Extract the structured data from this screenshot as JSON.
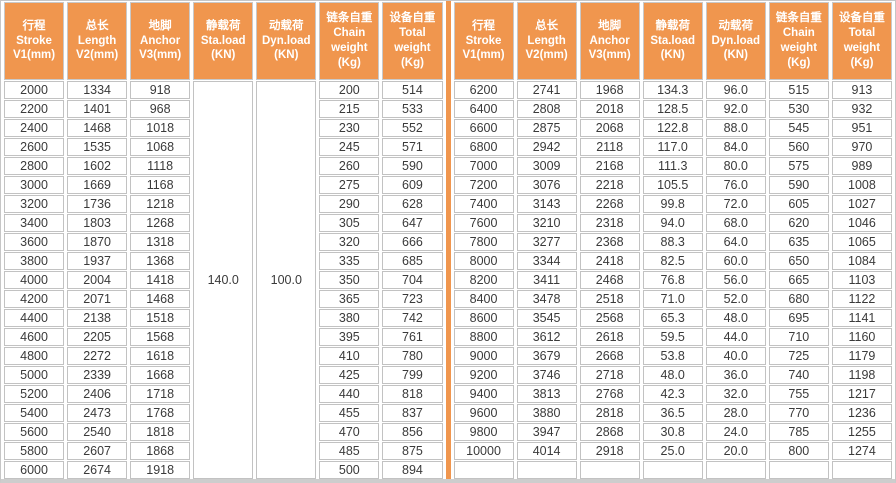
{
  "colors": {
    "header_bg": "#F0964E",
    "divider": "#F0964E",
    "cell_border": "#C2C2C2",
    "text": "#3A3A3A",
    "header_text": "#FFFFFF"
  },
  "table": {
    "column_keys": [
      "stroke",
      "length",
      "anchor",
      "sta",
      "dyn",
      "chain",
      "total"
    ],
    "header_columns": [
      {
        "key": "stroke",
        "lines": [
          "行程",
          "Stroke",
          "V1(mm)"
        ]
      },
      {
        "key": "length",
        "lines": [
          "总长",
          "Length",
          "V2(mm)"
        ]
      },
      {
        "key": "anchor",
        "lines": [
          "地脚",
          "Anchor",
          "V3(mm)"
        ]
      },
      {
        "key": "sta",
        "lines": [
          "静载荷",
          "Sta.load",
          "(KN)"
        ]
      },
      {
        "key": "dyn",
        "lines": [
          "动载荷",
          "Dyn.load",
          "(KN)"
        ]
      },
      {
        "key": "chain",
        "lines": [
          "链条自重",
          "Chain",
          "weight",
          "(Kg)"
        ]
      },
      {
        "key": "total",
        "lines": [
          "设备自重",
          "Total",
          "weight",
          "(Kg)"
        ]
      }
    ],
    "left_half": {
      "sta_load_merged": "140.0",
      "dyn_load_merged": "100.0",
      "rows": [
        [
          "2000",
          "1334",
          "918",
          "200",
          "514"
        ],
        [
          "2200",
          "1401",
          "968",
          "215",
          "533"
        ],
        [
          "2400",
          "1468",
          "1018",
          "230",
          "552"
        ],
        [
          "2600",
          "1535",
          "1068",
          "245",
          "571"
        ],
        [
          "2800",
          "1602",
          "1118",
          "260",
          "590"
        ],
        [
          "3000",
          "1669",
          "1168",
          "275",
          "609"
        ],
        [
          "3200",
          "1736",
          "1218",
          "290",
          "628"
        ],
        [
          "3400",
          "1803",
          "1268",
          "305",
          "647"
        ],
        [
          "3600",
          "1870",
          "1318",
          "320",
          "666"
        ],
        [
          "3800",
          "1937",
          "1368",
          "335",
          "685"
        ],
        [
          "4000",
          "2004",
          "1418",
          "350",
          "704"
        ],
        [
          "4200",
          "2071",
          "1468",
          "365",
          "723"
        ],
        [
          "4400",
          "2138",
          "1518",
          "380",
          "742"
        ],
        [
          "4600",
          "2205",
          "1568",
          "395",
          "761"
        ],
        [
          "4800",
          "2272",
          "1618",
          "410",
          "780"
        ],
        [
          "5000",
          "2339",
          "1668",
          "425",
          "799"
        ],
        [
          "5200",
          "2406",
          "1718",
          "440",
          "818"
        ],
        [
          "5400",
          "2473",
          "1768",
          "455",
          "837"
        ],
        [
          "5600",
          "2540",
          "1818",
          "470",
          "856"
        ],
        [
          "5800",
          "2607",
          "1868",
          "485",
          "875"
        ],
        [
          "6000",
          "2674",
          "1918",
          "500",
          "894"
        ]
      ]
    },
    "right_half": {
      "rows": [
        [
          "6200",
          "2741",
          "1968",
          "134.3",
          "96.0",
          "515",
          "913"
        ],
        [
          "6400",
          "2808",
          "2018",
          "128.5",
          "92.0",
          "530",
          "932"
        ],
        [
          "6600",
          "2875",
          "2068",
          "122.8",
          "88.0",
          "545",
          "951"
        ],
        [
          "6800",
          "2942",
          "2118",
          "117.0",
          "84.0",
          "560",
          "970"
        ],
        [
          "7000",
          "3009",
          "2168",
          "111.3",
          "80.0",
          "575",
          "989"
        ],
        [
          "7200",
          "3076",
          "2218",
          "105.5",
          "76.0",
          "590",
          "1008"
        ],
        [
          "7400",
          "3143",
          "2268",
          "99.8",
          "72.0",
          "605",
          "1027"
        ],
        [
          "7600",
          "3210",
          "2318",
          "94.0",
          "68.0",
          "620",
          "1046"
        ],
        [
          "7800",
          "3277",
          "2368",
          "88.3",
          "64.0",
          "635",
          "1065"
        ],
        [
          "8000",
          "3344",
          "2418",
          "82.5",
          "60.0",
          "650",
          "1084"
        ],
        [
          "8200",
          "3411",
          "2468",
          "76.8",
          "56.0",
          "665",
          "1103"
        ],
        [
          "8400",
          "3478",
          "2518",
          "71.0",
          "52.0",
          "680",
          "1122"
        ],
        [
          "8600",
          "3545",
          "2568",
          "65.3",
          "48.0",
          "695",
          "1141"
        ],
        [
          "8800",
          "3612",
          "2618",
          "59.5",
          "44.0",
          "710",
          "1160"
        ],
        [
          "9000",
          "3679",
          "2668",
          "53.8",
          "40.0",
          "725",
          "1179"
        ],
        [
          "9200",
          "3746",
          "2718",
          "48.0",
          "36.0",
          "740",
          "1198"
        ],
        [
          "9400",
          "3813",
          "2768",
          "42.3",
          "32.0",
          "755",
          "1217"
        ],
        [
          "9600",
          "3880",
          "2818",
          "36.5",
          "28.0",
          "770",
          "1236"
        ],
        [
          "9800",
          "3947",
          "2868",
          "30.8",
          "24.0",
          "785",
          "1255"
        ],
        [
          "10000",
          "4014",
          "2918",
          "25.0",
          "20.0",
          "800",
          "1274"
        ],
        [
          "",
          "",
          "",
          "",
          "",
          "",
          ""
        ]
      ]
    }
  }
}
